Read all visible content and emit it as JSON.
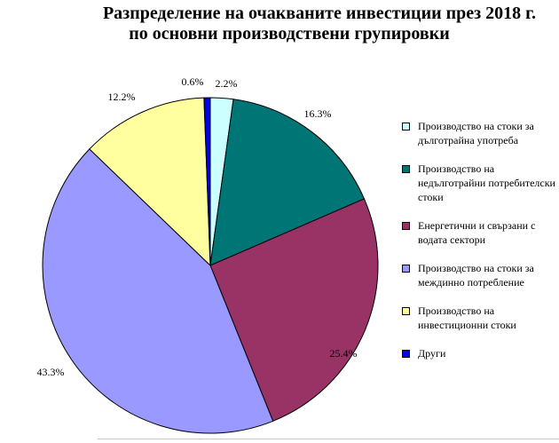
{
  "title_line1": "Разпределение на очакваните инвестиции през 2018 г.",
  "title_line2": "по основни производствени групировки",
  "chart_data": {
    "type": "pie",
    "title": "Разпределение на очакваните инвестиции през 2018 г. по основни производствени групировки",
    "legend_position": "right",
    "slices": [
      {
        "label": "Производство на стоки за дълготрайна употреба",
        "value": 2.2,
        "value_label": "2.2%",
        "color": "#ccffff"
      },
      {
        "label": "Производство на недълготрайни потребителски стоки",
        "value": 16.3,
        "value_label": "16.3%",
        "color": "#007575"
      },
      {
        "label": "Енергетични и свързани с водата сектори",
        "value": 25.4,
        "value_label": "25.4%",
        "color": "#993366"
      },
      {
        "label": "Производство на стоки за междинно потребление",
        "value": 43.3,
        "value_label": "43.3%",
        "color": "#9999ff"
      },
      {
        "label": "Производство на инвестиционни стоки",
        "value": 12.2,
        "value_label": "12.2%",
        "color": "#ffffa0"
      },
      {
        "label": "Други",
        "value": 0.6,
        "value_label": "0.6%",
        "color": "#0000ee"
      }
    ]
  }
}
